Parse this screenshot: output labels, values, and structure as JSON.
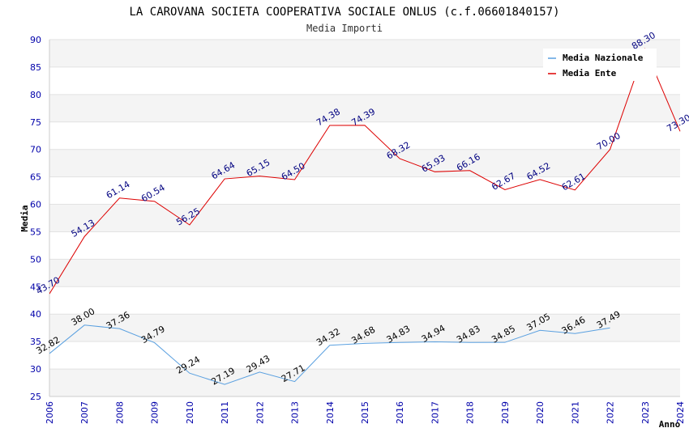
{
  "chart_data": {
    "type": "line",
    "title": "LA CAROVANA SOCIETA COOPERATIVA SOCIALE ONLUS (c.f.06601840157)",
    "subtitle": "Media Importi",
    "xlabel": "Anno",
    "ylabel": "Media",
    "ylim": [
      25,
      90
    ],
    "yticks": [
      25,
      30,
      35,
      40,
      45,
      50,
      55,
      60,
      65,
      70,
      75,
      80,
      85,
      90
    ],
    "categories": [
      "2006",
      "2007",
      "2008",
      "2009",
      "2010",
      "2011",
      "2012",
      "2013",
      "2014",
      "2015",
      "2016",
      "2017",
      "2018",
      "2019",
      "2020",
      "2021",
      "2022",
      "2023",
      "2024"
    ],
    "grid": "horizontal alternating bands",
    "legend_position": "top-right",
    "series": [
      {
        "name": "Media Nazionale",
        "color": "#5aa0e0",
        "label_color": "#000000",
        "values": [
          32.82,
          38.0,
          37.36,
          34.79,
          29.24,
          27.19,
          29.43,
          27.71,
          34.32,
          34.68,
          34.83,
          34.94,
          34.83,
          34.85,
          37.05,
          36.46,
          37.49,
          null,
          null
        ],
        "labels": [
          "32.82",
          "38.00",
          "37.36",
          "34.79",
          "29.24",
          "27.19",
          "29.43",
          "27.71",
          "34.32",
          "34.68",
          "34.83",
          "34.94",
          "34.83",
          "34.85",
          "37.05",
          "36.46",
          "37.49",
          "",
          ""
        ]
      },
      {
        "name": "Media Ente",
        "color": "#dd0000",
        "label_color": "#000080",
        "values": [
          43.7,
          54.13,
          61.14,
          60.54,
          56.25,
          64.64,
          65.15,
          64.5,
          74.38,
          74.39,
          68.32,
          65.93,
          66.16,
          62.67,
          64.52,
          62.61,
          70.0,
          88.3,
          73.3
        ],
        "labels": [
          "43.70",
          "54.13",
          "61.14",
          "60.54",
          "56.25",
          "64.64",
          "65.15",
          "64.50",
          "74.38",
          "74.39",
          "68.32",
          "65.93",
          "66.16",
          "62.67",
          "64.52",
          "62.61",
          "70.00",
          "88.30",
          "73.30"
        ]
      }
    ]
  }
}
